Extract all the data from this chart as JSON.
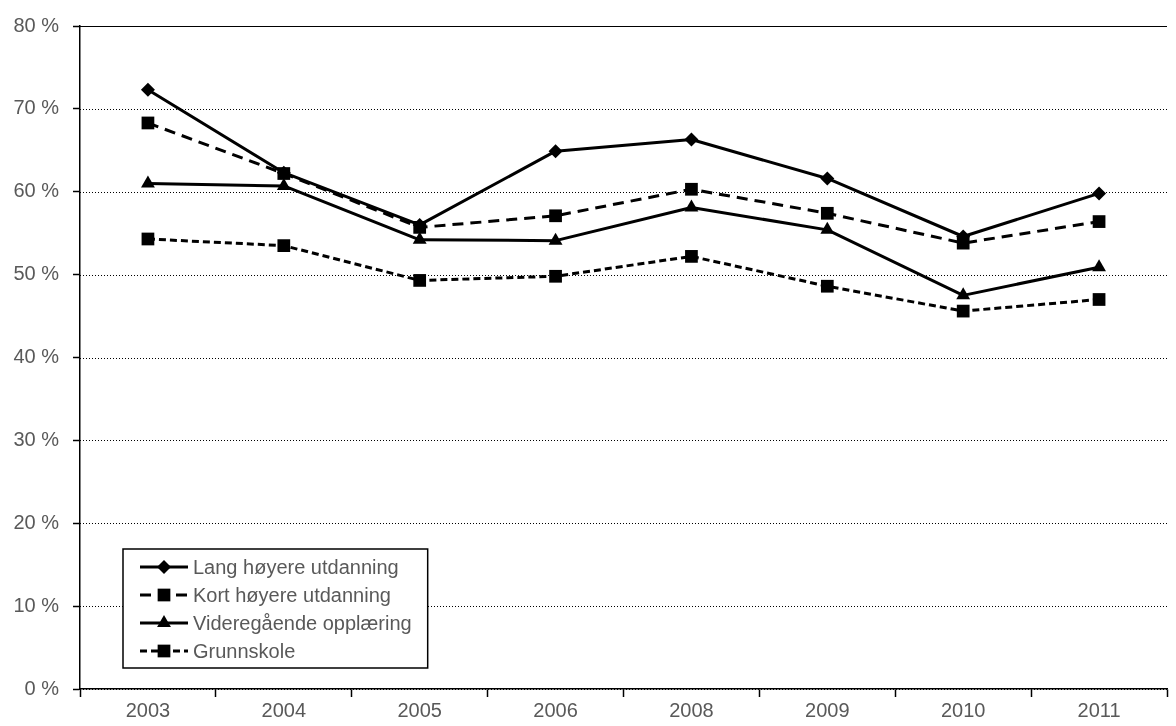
{
  "chart_data": {
    "type": "line",
    "categories": [
      "2003",
      "2004",
      "2005",
      "2006",
      "2008",
      "2009",
      "2010",
      "2011"
    ],
    "series": [
      {
        "name": "Lang høyere utdanning",
        "color": "#000000",
        "marker": "diamond",
        "line_style": "solid",
        "values": [
          72.3,
          62.3,
          56.0,
          64.9,
          66.3,
          61.6,
          54.6,
          59.8
        ]
      },
      {
        "name": "Kort høyere utdanning",
        "color": "#000000",
        "marker": "square",
        "line_style": "dashed",
        "values": [
          68.3,
          62.2,
          55.7,
          57.1,
          60.3,
          57.4,
          53.8,
          56.4
        ]
      },
      {
        "name": "Videregående opplæring",
        "color": "#000000",
        "marker": "triangle",
        "line_style": "solid",
        "values": [
          61.0,
          60.7,
          54.2,
          54.1,
          58.1,
          55.4,
          47.5,
          50.9
        ]
      },
      {
        "name": "Grunnskole",
        "color": "#000000",
        "marker": "square",
        "line_style": "dotted",
        "values": [
          54.3,
          53.5,
          49.3,
          49.8,
          52.2,
          48.6,
          45.6,
          47.0
        ]
      }
    ],
    "ylim": [
      0,
      80
    ],
    "yticks": [
      {
        "value": 0,
        "label": "0 %"
      },
      {
        "value": 10,
        "label": "10 %"
      },
      {
        "value": 20,
        "label": "20 %"
      },
      {
        "value": 30,
        "label": "30 %"
      },
      {
        "value": 40,
        "label": "40 %"
      },
      {
        "value": 50,
        "label": "50 %"
      },
      {
        "value": 60,
        "label": "60 %"
      },
      {
        "value": 70,
        "label": "70 %"
      },
      {
        "value": 80,
        "label": "80 %"
      }
    ],
    "grid": "y",
    "legend": "bottom left"
  }
}
